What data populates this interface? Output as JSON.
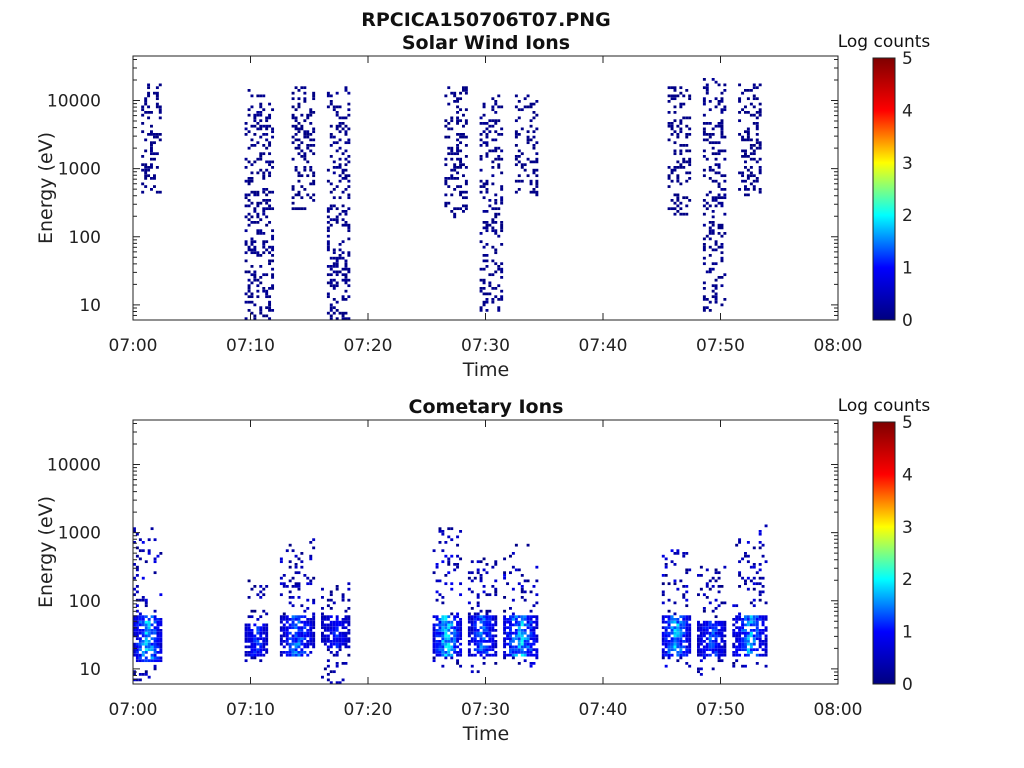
{
  "figure_title": "RPCICA150706T07.PNG",
  "colors": {
    "colormap": [
      "#00007f",
      "#0000ff",
      "#00ffff",
      "#ffff00",
      "#ff0000",
      "#7f0000"
    ],
    "axes": "#222222"
  },
  "chart_data": [
    {
      "type": "heatmap",
      "title": "Solar Wind Ions",
      "xlabel": "Time",
      "ylabel": "Energy (eV)",
      "xlim": [
        "07:00",
        "08:00"
      ],
      "xticks": [
        "07:00",
        "07:10",
        "07:20",
        "07:30",
        "07:40",
        "07:50",
        "08:00"
      ],
      "yscale": "log",
      "ylim": [
        6,
        45000
      ],
      "yticks": [
        "10",
        "100",
        "1000",
        "10000"
      ],
      "colorbar": {
        "label": "Log counts",
        "range": [
          0,
          5
        ],
        "ticks": [
          "0",
          "1",
          "2",
          "3",
          "4",
          "5"
        ]
      },
      "bursts": [
        {
          "start_min": 0.7,
          "end_min": 2.3,
          "low_eV": 450,
          "high_eV": 17000,
          "peak_log_counts": 0.3
        },
        {
          "start_min": 9.5,
          "end_min": 12.0,
          "low_eV": 6,
          "high_eV": 14000,
          "peak_log_counts": 0.5
        },
        {
          "start_min": 13.5,
          "end_min": 15.5,
          "low_eV": 250,
          "high_eV": 15000,
          "peak_log_counts": 0.3
        },
        {
          "start_min": 16.5,
          "end_min": 18.5,
          "low_eV": 6,
          "high_eV": 15000,
          "peak_log_counts": 0.5
        },
        {
          "start_min": 26.5,
          "end_min": 28.5,
          "low_eV": 200,
          "high_eV": 16000,
          "peak_log_counts": 0.3
        },
        {
          "start_min": 29.5,
          "end_min": 31.5,
          "low_eV": 8,
          "high_eV": 12000,
          "peak_log_counts": 0.5
        },
        {
          "start_min": 32.5,
          "end_min": 34.5,
          "low_eV": 400,
          "high_eV": 12000,
          "peak_log_counts": 0.3
        },
        {
          "start_min": 45.5,
          "end_min": 47.5,
          "low_eV": 220,
          "high_eV": 16000,
          "peak_log_counts": 0.3
        },
        {
          "start_min": 48.5,
          "end_min": 50.5,
          "low_eV": 8,
          "high_eV": 20000,
          "peak_log_counts": 0.5
        },
        {
          "start_min": 51.5,
          "end_min": 53.5,
          "low_eV": 380,
          "high_eV": 17000,
          "peak_log_counts": 0.3
        }
      ]
    },
    {
      "type": "heatmap",
      "title": "Cometary Ions",
      "xlabel": "Time",
      "ylabel": "Energy (eV)",
      "xlim": [
        "07:00",
        "08:00"
      ],
      "xticks": [
        "07:00",
        "07:10",
        "07:20",
        "07:30",
        "07:40",
        "07:50",
        "08:00"
      ],
      "yscale": "log",
      "ylim": [
        6,
        45000
      ],
      "yticks": [
        "10",
        "100",
        "1000",
        "10000"
      ],
      "colorbar": {
        "label": "Log counts",
        "range": [
          0,
          5
        ],
        "ticks": [
          "0",
          "1",
          "2",
          "3",
          "4",
          "5"
        ]
      },
      "bursts": [
        {
          "start_min": 0.0,
          "end_min": 2.5,
          "low_eV": 6,
          "high_eV": 1100,
          "core_eV": [
            12,
            60
          ],
          "peak_log_counts": 2.2
        },
        {
          "start_min": 9.5,
          "end_min": 11.5,
          "low_eV": 13,
          "high_eV": 200,
          "core_eV": [
            15,
            45
          ],
          "peak_log_counts": 1.6
        },
        {
          "start_min": 12.5,
          "end_min": 15.5,
          "low_eV": 13,
          "high_eV": 800,
          "core_eV": [
            15,
            60
          ],
          "peak_log_counts": 1.8
        },
        {
          "start_min": 16.0,
          "end_min": 18.5,
          "low_eV": 6,
          "high_eV": 180,
          "core_eV": [
            20,
            60
          ],
          "peak_log_counts": 1.4
        },
        {
          "start_min": 25.5,
          "end_min": 28.0,
          "low_eV": 11,
          "high_eV": 1100,
          "core_eV": [
            14,
            60
          ],
          "peak_log_counts": 2.3
        },
        {
          "start_min": 28.5,
          "end_min": 31.0,
          "low_eV": 9,
          "high_eV": 420,
          "core_eV": [
            14,
            60
          ],
          "peak_log_counts": 1.8
        },
        {
          "start_min": 31.5,
          "end_min": 34.5,
          "low_eV": 11,
          "high_eV": 650,
          "core_eV": [
            14,
            60
          ],
          "peak_log_counts": 2.2
        },
        {
          "start_min": 45.0,
          "end_min": 47.5,
          "low_eV": 11,
          "high_eV": 550,
          "core_eV": [
            14,
            60
          ],
          "peak_log_counts": 2.2
        },
        {
          "start_min": 48.0,
          "end_min": 50.5,
          "low_eV": 8,
          "high_eV": 300,
          "core_eV": [
            14,
            50
          ],
          "peak_log_counts": 1.7
        },
        {
          "start_min": 51.0,
          "end_min": 54.0,
          "low_eV": 11,
          "high_eV": 1200,
          "core_eV": [
            14,
            60
          ],
          "peak_log_counts": 2.0
        }
      ]
    }
  ]
}
